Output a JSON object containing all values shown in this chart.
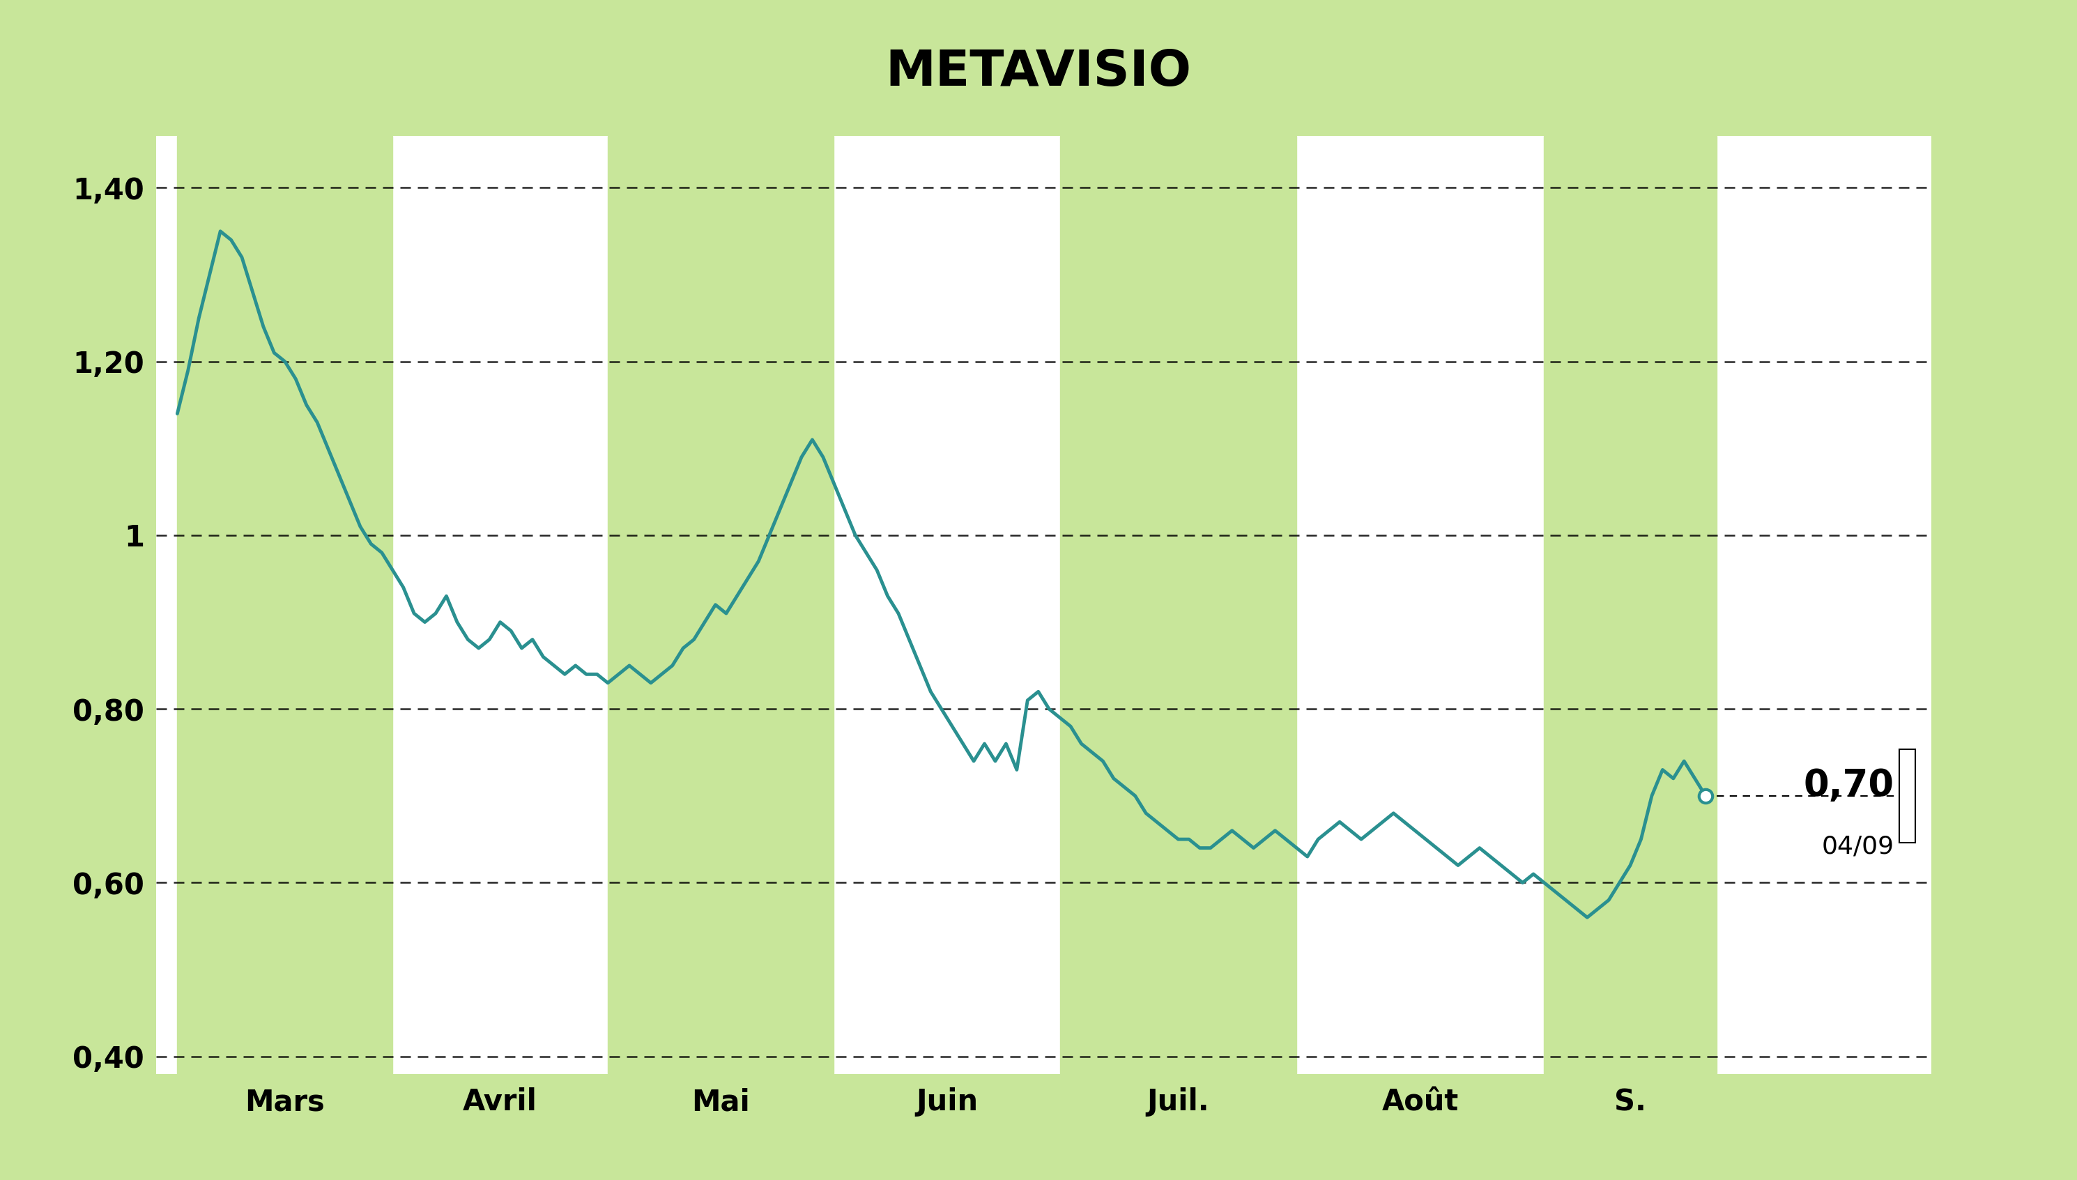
{
  "title": "METAVISIO",
  "bg_color": "#c8e69a",
  "plot_bg": "#ffffff",
  "line_color": "#2a9090",
  "line_width": 3.5,
  "ylim": [
    0.38,
    1.46
  ],
  "yticks": [
    0.4,
    0.6,
    0.8,
    1.0,
    1.2,
    1.4
  ],
  "ytick_labels": [
    "0,40",
    "0,60",
    "0,80",
    "1",
    "1,20",
    "1,40"
  ],
  "month_labels": [
    "Mars",
    "Avril",
    "Mai",
    "Juin",
    "Juil.",
    "Août",
    "S."
  ],
  "shade_color": "#c8e69a",
  "last_label": "0,70",
  "last_date": "04/09",
  "title_fontsize": 52,
  "tick_fontsize": 30,
  "month_fontsize": 30,
  "annotation_value_fontsize": 38,
  "annotation_date_fontsize": 26,
  "prices": [
    1.14,
    1.19,
    1.25,
    1.3,
    1.35,
    1.34,
    1.32,
    1.28,
    1.24,
    1.21,
    1.2,
    1.18,
    1.15,
    1.13,
    1.1,
    1.07,
    1.04,
    1.01,
    0.99,
    0.98,
    0.96,
    0.94,
    0.91,
    0.9,
    0.91,
    0.93,
    0.9,
    0.88,
    0.87,
    0.88,
    0.9,
    0.89,
    0.87,
    0.88,
    0.86,
    0.85,
    0.84,
    0.85,
    0.84,
    0.84,
    0.83,
    0.84,
    0.85,
    0.84,
    0.83,
    0.84,
    0.85,
    0.87,
    0.88,
    0.9,
    0.92,
    0.91,
    0.93,
    0.95,
    0.97,
    1.0,
    1.03,
    1.06,
    1.09,
    1.11,
    1.09,
    1.06,
    1.03,
    1.0,
    0.98,
    0.96,
    0.93,
    0.91,
    0.88,
    0.85,
    0.82,
    0.8,
    0.78,
    0.76,
    0.74,
    0.76,
    0.74,
    0.76,
    0.73,
    0.81,
    0.82,
    0.8,
    0.79,
    0.78,
    0.76,
    0.75,
    0.74,
    0.72,
    0.71,
    0.7,
    0.68,
    0.67,
    0.66,
    0.65,
    0.65,
    0.64,
    0.64,
    0.65,
    0.66,
    0.65,
    0.64,
    0.65,
    0.66,
    0.65,
    0.64,
    0.63,
    0.65,
    0.66,
    0.67,
    0.66,
    0.65,
    0.66,
    0.67,
    0.68,
    0.67,
    0.66,
    0.65,
    0.64,
    0.63,
    0.62,
    0.63,
    0.64,
    0.63,
    0.62,
    0.61,
    0.6,
    0.61,
    0.6,
    0.59,
    0.58,
    0.57,
    0.56,
    0.57,
    0.58,
    0.6,
    0.62,
    0.65,
    0.7,
    0.73,
    0.72,
    0.74,
    0.72,
    0.7
  ],
  "month_boundaries": [
    0,
    20,
    40,
    61,
    82,
    104,
    127,
    143
  ],
  "shade_months_idx": [
    0,
    2,
    4,
    6
  ]
}
